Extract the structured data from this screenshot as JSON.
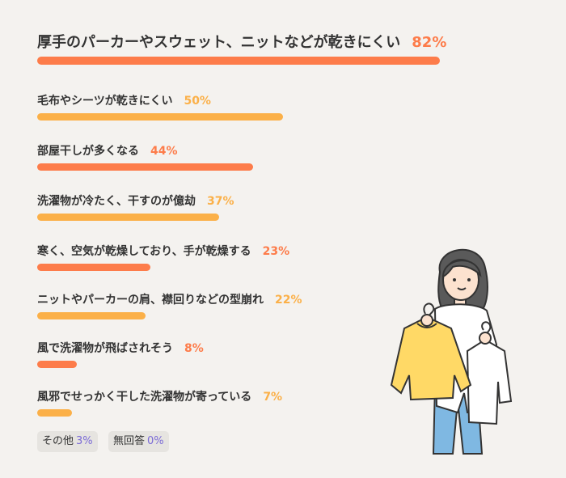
{
  "colors": {
    "orange": "#fd7c4a",
    "yellow": "#fbb048",
    "purple": "#7b6bd6",
    "text": "#333333"
  },
  "chart_data": {
    "type": "bar",
    "orientation": "horizontal",
    "unit": "%",
    "categories": [
      "厚手のパーカーやスウェット、ニットなどが乾きにくい",
      "毛布やシーツが乾きにくい",
      "部屋干しが多くなる",
      "洗濯物が冷たく、干すのが億劫",
      "寒く、空気が乾燥しており、手が乾燥する",
      "ニットやパーカーの肩、襟回りなどの型崩れ",
      "風で洗濯物が飛ばされそう",
      "風邪でせっかく干した洗濯物が寄っている"
    ],
    "values": [
      82,
      50,
      44,
      37,
      23,
      22,
      8,
      7
    ],
    "value_labels": [
      "82%",
      "50%",
      "44%",
      "37%",
      "23%",
      "22%",
      "8%",
      "7%"
    ],
    "bar_colors": [
      "orange",
      "yellow",
      "orange",
      "yellow",
      "orange",
      "yellow",
      "orange",
      "yellow"
    ],
    "extra_categories": [
      {
        "label": "その他",
        "value": 3,
        "value_label": "3%"
      },
      {
        "label": "無回答",
        "value": 0,
        "value_label": "0%"
      }
    ]
  }
}
